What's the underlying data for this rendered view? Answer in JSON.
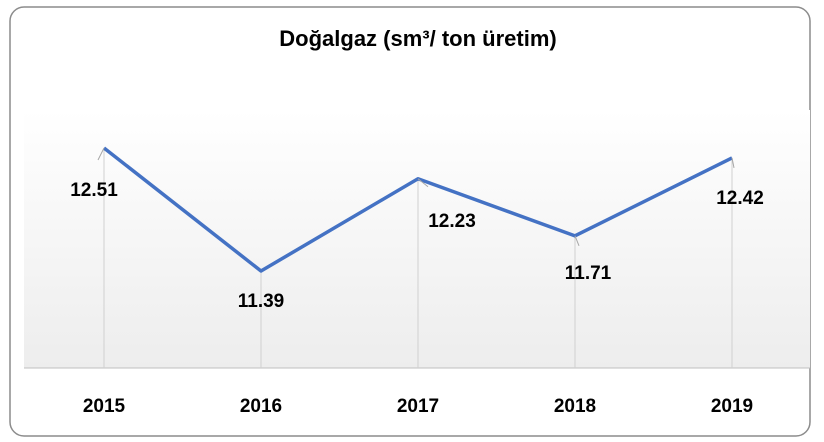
{
  "chart_data": {
    "type": "line",
    "title": "Doğalgaz (sm³/ ton üretim)",
    "categories": [
      "2015",
      "2016",
      "2017",
      "2018",
      "2019"
    ],
    "values": [
      12.51,
      11.39,
      12.23,
      11.71,
      12.42
    ],
    "color": "#4472c4"
  }
}
